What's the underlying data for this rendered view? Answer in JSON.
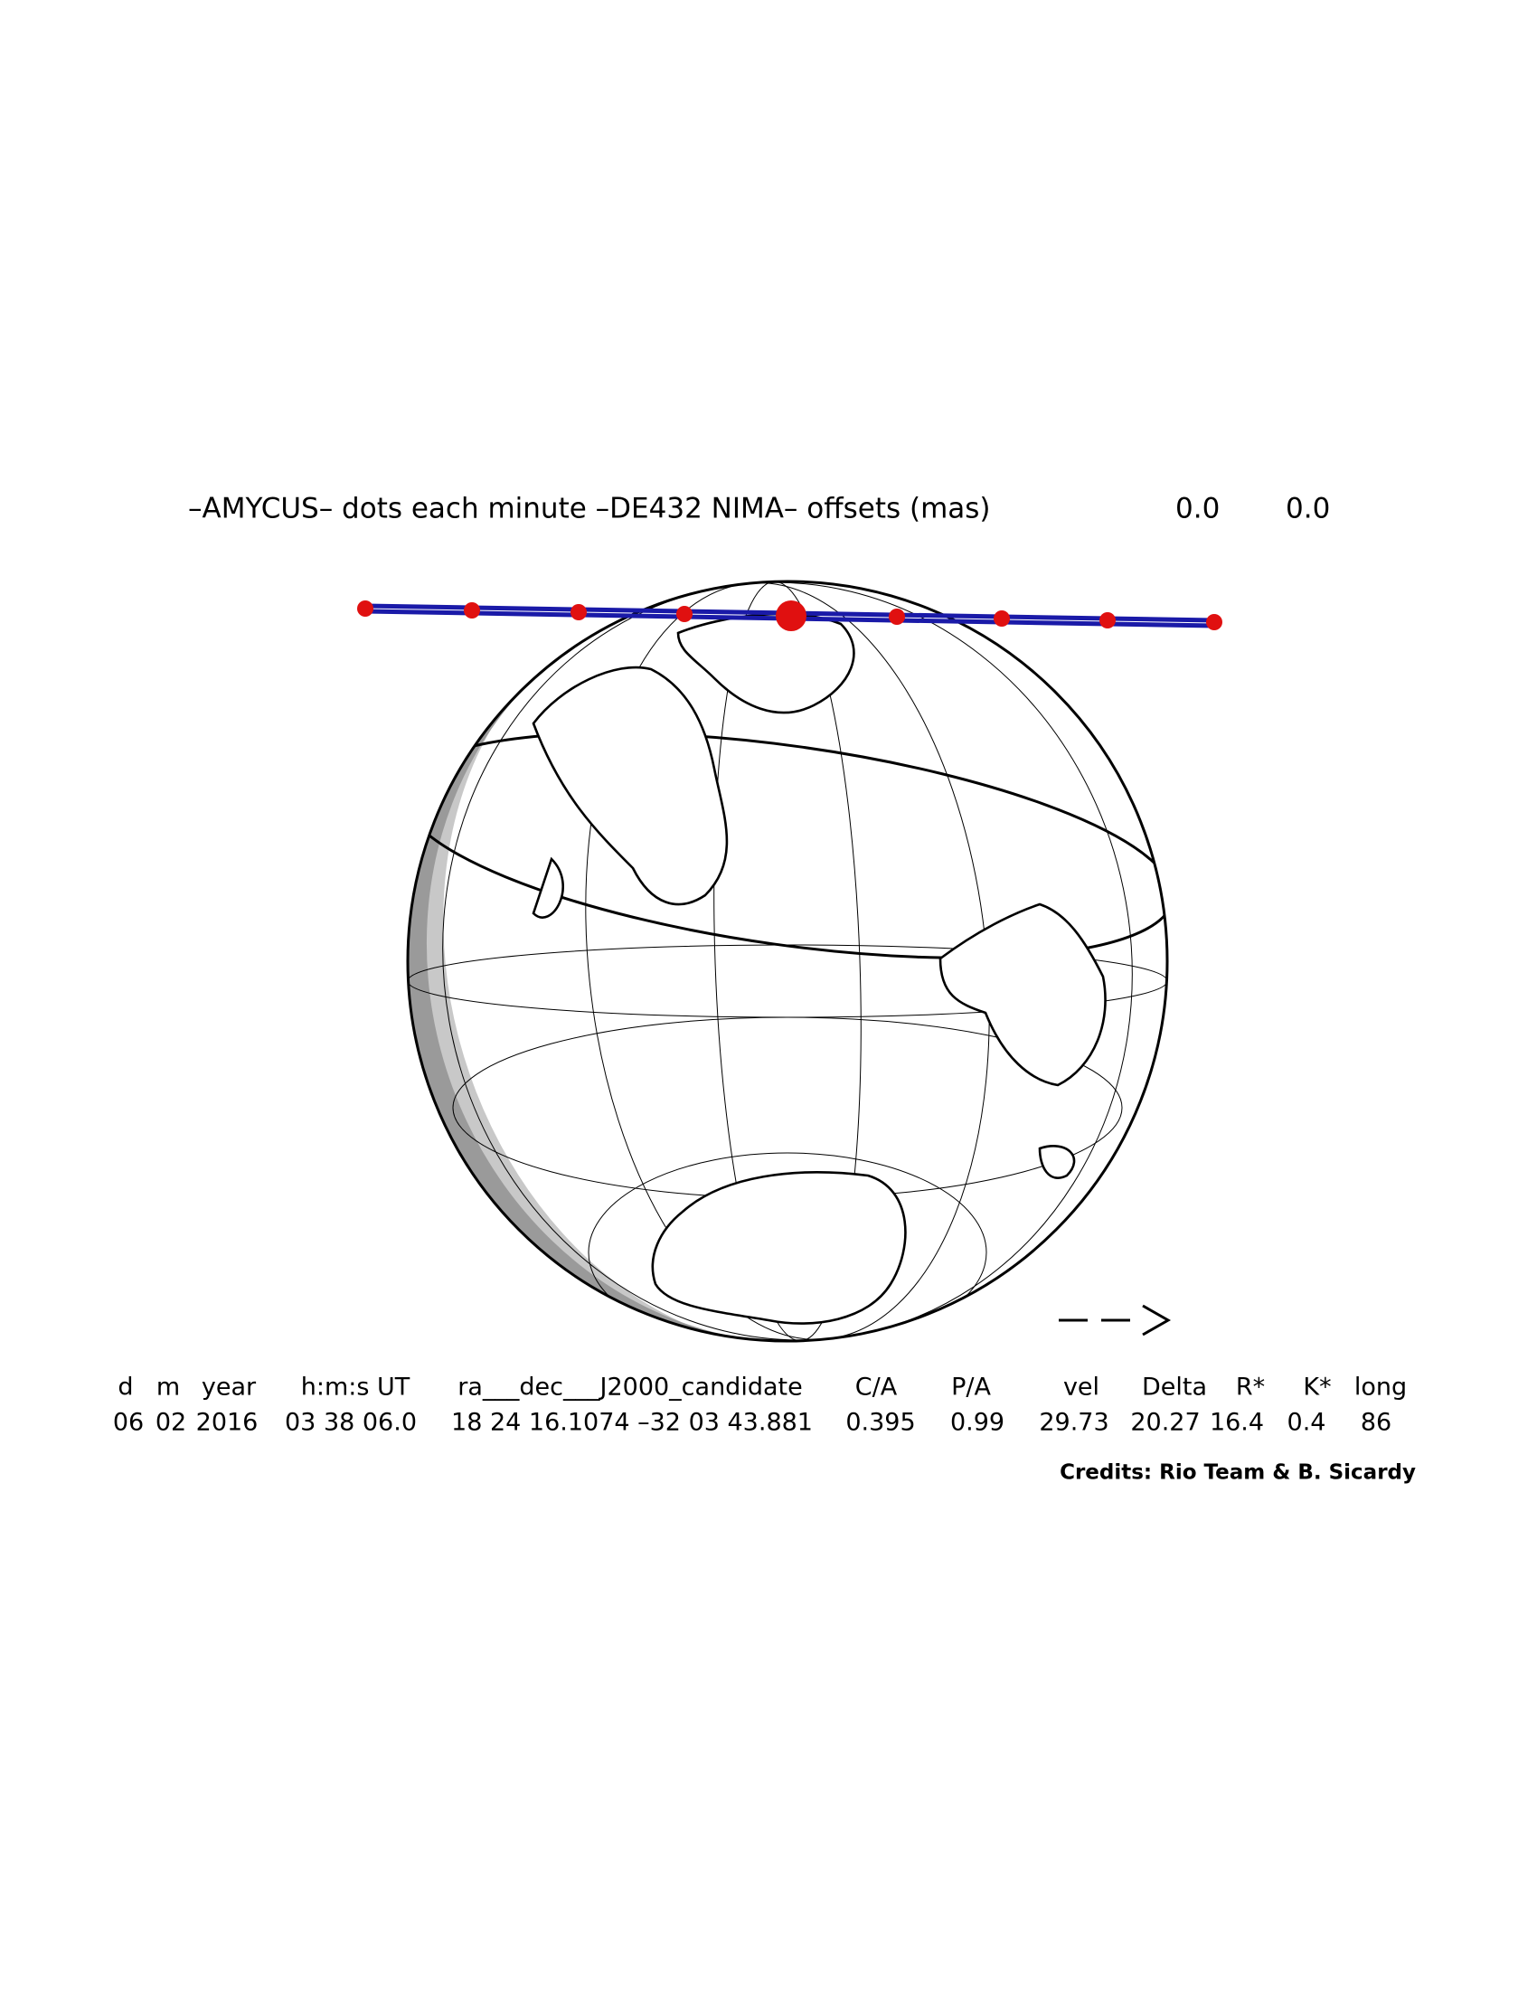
{
  "title": "–AMYCUS– dots each minute –DE432 NIMA– offsets (mas)",
  "offsets": [
    "0.0",
    "0.0"
  ],
  "table": {
    "headers": [
      "d",
      "m",
      "year",
      "h:m:s UT",
      "ra___dec___J2000_candidate",
      "C/A",
      "P/A",
      "vel",
      "Delta",
      "R*",
      "K*",
      "long"
    ],
    "values": [
      "06",
      "02",
      "2016",
      "03 38 06.0",
      "18 24 16.1074 –32 03 43.881",
      "0.395",
      "0.99",
      "29.73",
      "20.27",
      "16.4",
      "0.4",
      "86"
    ]
  },
  "credits": "Credits: Rio Team & B. Sicardy"
}
